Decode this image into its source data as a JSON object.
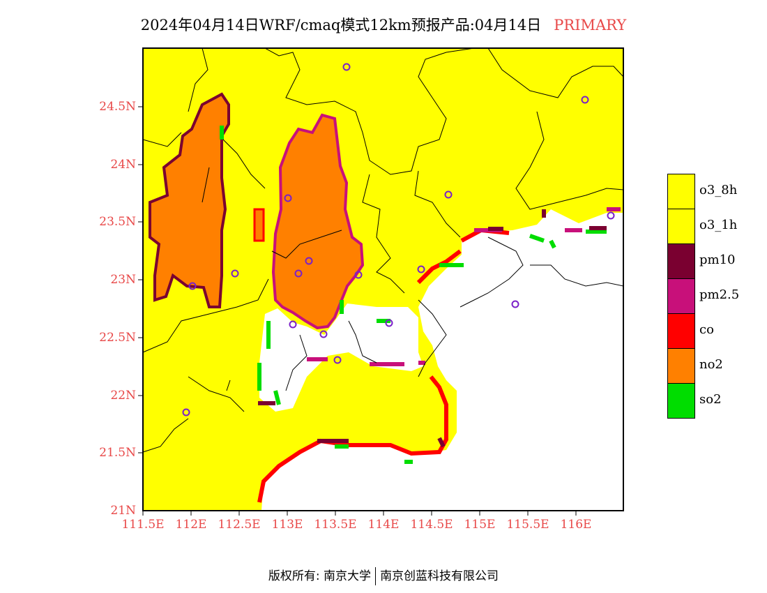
{
  "title": {
    "text": "2024年04月14日WRF/cmaq模式12km预报产品:04月14日",
    "tag": "PRIMARY"
  },
  "colors": {
    "o3": "#ffff00",
    "pm10": "#7a0030",
    "pm25": "#c8107a",
    "co": "#ff0000",
    "no2": "#ff8000",
    "so2": "#00dd00",
    "labels": "#e84848",
    "station": "#7a20c8"
  },
  "axes": {
    "lat_labels": [
      "24.5N",
      "24N",
      "23.5N",
      "23N",
      "22.5N",
      "22N",
      "21.5N",
      "21N"
    ],
    "lon_labels": [
      "111.5E",
      "112E",
      "112.5E",
      "113E",
      "113.5E",
      "114E",
      "114.5E",
      "115E",
      "115.5E",
      "116E"
    ]
  },
  "legend": [
    {
      "label": "o3_8h",
      "color": "#ffff00"
    },
    {
      "label": "o3_1h",
      "color": "#ffff00"
    },
    {
      "label": "pm10",
      "color": "#7a0030"
    },
    {
      "label": "pm2.5",
      "color": "#c8107a"
    },
    {
      "label": "co",
      "color": "#ff0000"
    },
    {
      "label": "no2",
      "color": "#ff8000"
    },
    {
      "label": "so2",
      "color": "#00dd00"
    }
  ],
  "footer": {
    "left": "版权所有: 南京大学",
    "right": "南京创蓝科技有限公司"
  }
}
